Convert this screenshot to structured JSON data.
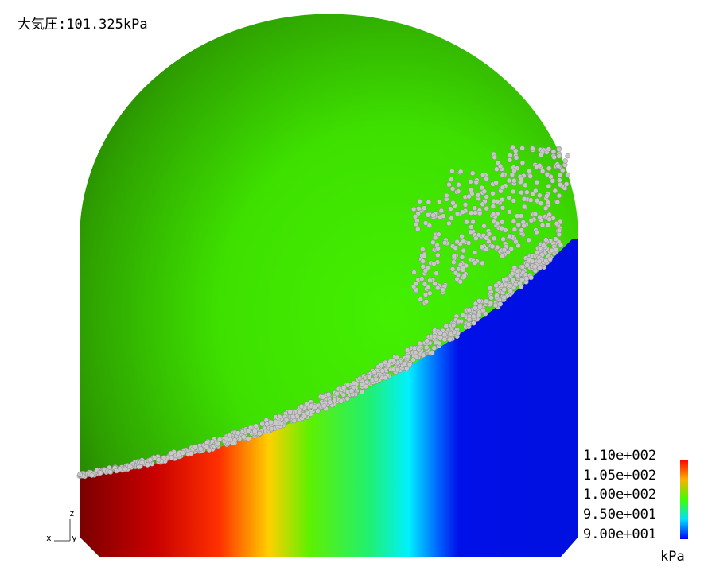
{
  "header": {
    "title": "大気圧:101.325kPa"
  },
  "legend": {
    "labels": [
      "1.10e+002",
      "1.05e+002",
      "1.00e+002",
      "9.50e+001",
      "9.00e+001"
    ],
    "unit": "kPa"
  },
  "axes": {
    "z": "z",
    "x": "x",
    "y": "y"
  }
}
